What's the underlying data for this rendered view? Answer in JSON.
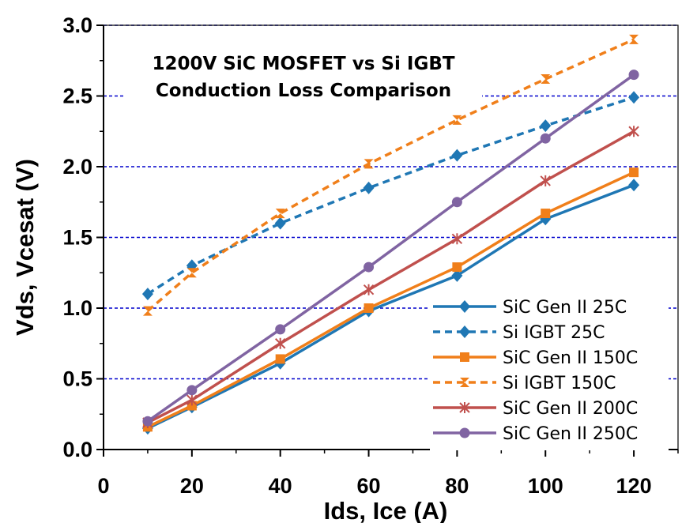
{
  "chart_data": {
    "type": "line",
    "title_lines": [
      "1200V SiC MOSFET vs Si IGBT",
      "Conduction Loss Comparison"
    ],
    "xlabel": "Ids, Ice (A)",
    "ylabel": "Vds, Vcesat (V)",
    "xlim": [
      0,
      130
    ],
    "ylim": [
      0,
      3.0
    ],
    "x_ticks": [
      "0",
      "20",
      "40",
      "60",
      "80",
      "100",
      "120"
    ],
    "y_ticks": [
      "0.0",
      "0.5",
      "1.0",
      "1.5",
      "2.0",
      "2.5",
      "3.0"
    ],
    "grid": "horizontal dashed",
    "legend_position": "bottom-right",
    "x": [
      10,
      20,
      40,
      60,
      80,
      100,
      120
    ],
    "series": [
      {
        "name": "SiC Gen II 25C",
        "values": [
          0.15,
          0.3,
          0.61,
          0.98,
          1.23,
          1.63,
          1.87
        ],
        "color": "#1f77b4",
        "dash": "solid",
        "marker": "diamond"
      },
      {
        "name": "Si IGBT 25C",
        "values": [
          1.1,
          1.3,
          1.6,
          1.85,
          2.08,
          2.29,
          2.49
        ],
        "color": "#1f77b4",
        "dash": "dashed",
        "marker": "diamond"
      },
      {
        "name": "SiC Gen II 150C",
        "values": [
          0.16,
          0.31,
          0.64,
          1.0,
          1.29,
          1.67,
          1.96
        ],
        "color": "#f07f1a",
        "dash": "solid",
        "marker": "square"
      },
      {
        "name": "Si IGBT 150C",
        "values": [
          0.98,
          1.25,
          1.67,
          2.02,
          2.33,
          2.62,
          2.9
        ],
        "color": "#f07f1a",
        "dash": "dashed",
        "marker": "bowtie"
      },
      {
        "name": "SiC Gen II 200C",
        "values": [
          0.19,
          0.35,
          0.75,
          1.13,
          1.49,
          1.9,
          2.25
        ],
        "color": "#c0504d",
        "dash": "solid",
        "marker": "star"
      },
      {
        "name": "SiC Gen II 250C",
        "values": [
          0.2,
          0.42,
          0.85,
          1.29,
          1.75,
          2.2,
          2.65
        ],
        "color": "#8064a2",
        "dash": "solid",
        "marker": "circle"
      }
    ]
  }
}
